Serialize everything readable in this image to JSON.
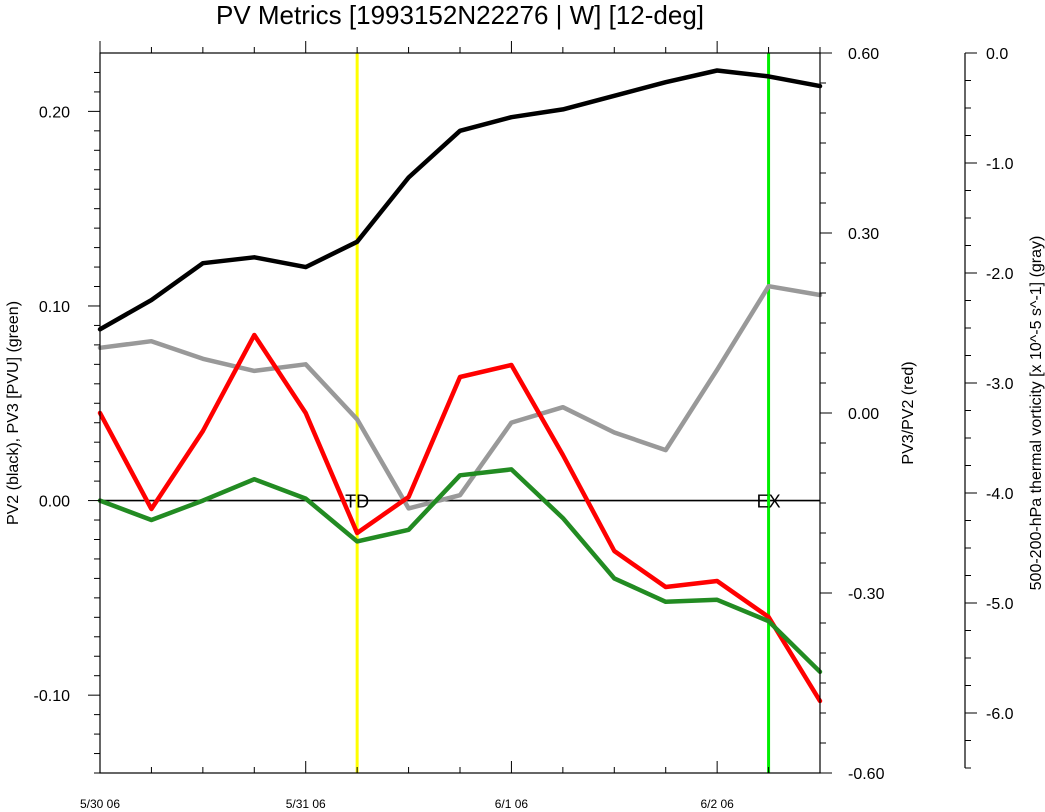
{
  "chart_data": {
    "type": "line",
    "title": "PV Metrics [1993152N22276 | W] [12-deg]",
    "ylabel_left": "PV2 (black), PV3 [PVU] (green)",
    "ylabel_right1": "PV3/PV2 (red)",
    "ylabel_right2": "500-200-hPa thermal vorticity [x 10^-5 s^-1] (gray)",
    "x_ticks": [
      {
        "x": 0,
        "label": "5/30 06"
      },
      {
        "x": 24,
        "label": "5/31 06"
      },
      {
        "x": 48,
        "label": "6/1 06"
      },
      {
        "x": 72,
        "label": "6/2 06"
      }
    ],
    "xlim": [
      0,
      84
    ],
    "ylim_left": [
      -0.14,
      0.23
    ],
    "ylim_right1": [
      -0.6,
      0.6
    ],
    "ylim_right2": [
      -6.5,
      0.0
    ],
    "left_ticks": [
      {
        "v": 0.2,
        "label": "0.20"
      },
      {
        "v": 0.1,
        "label": "0.10"
      },
      {
        "v": 0.0,
        "label": "0.00"
      },
      {
        "v": -0.1,
        "label": "-0.10"
      }
    ],
    "right1_ticks": [
      {
        "v": 0.6,
        "label": "0.60"
      },
      {
        "v": 0.3,
        "label": "0.30"
      },
      {
        "v": 0.0,
        "label": "0.00"
      },
      {
        "v": -0.3,
        "label": "-0.30"
      },
      {
        "v": -0.6,
        "label": "-0.60"
      }
    ],
    "right2_ticks": [
      {
        "v": 0.0,
        "label": "0.0"
      },
      {
        "v": -1.0,
        "label": "-1.0"
      },
      {
        "v": -2.0,
        "label": "-2.0"
      },
      {
        "v": -3.0,
        "label": "-3.0"
      },
      {
        "v": -4.0,
        "label": "-4.0"
      },
      {
        "v": -5.0,
        "label": "-5.0"
      },
      {
        "v": -6.0,
        "label": "-6.0"
      }
    ],
    "x": [
      0,
      6,
      12,
      18,
      24,
      30,
      36,
      42,
      48,
      54,
      60,
      66,
      72,
      78,
      84
    ],
    "series": [
      {
        "key": "pv2",
        "axis": "left",
        "color": "#000000",
        "values": [
          0.088,
          0.103,
          0.122,
          0.125,
          0.12,
          0.133,
          0.166,
          0.19,
          0.197,
          0.201,
          0.208,
          0.215,
          0.221,
          0.218,
          0.213
        ]
      },
      {
        "key": "vort",
        "axis": "right2",
        "color": "#999999",
        "values": [
          -2.68,
          -2.62,
          -2.78,
          -2.89,
          -2.83,
          -3.33,
          -4.14,
          -4.02,
          -3.36,
          -3.22,
          -3.45,
          -3.61,
          -2.88,
          -2.12,
          -2.2
        ]
      },
      {
        "key": "ratio",
        "axis": "right1",
        "color": "#ff0000",
        "values": [
          0.0,
          -0.16,
          -0.03,
          0.13,
          0.0,
          -0.2,
          -0.14,
          0.06,
          0.08,
          -0.07,
          -0.23,
          -0.29,
          -0.28,
          -0.34,
          -0.48
        ]
      },
      {
        "key": "pv3",
        "axis": "left",
        "color": "#228b22",
        "values": [
          0.0,
          -0.01,
          0.0,
          0.011,
          0.001,
          -0.021,
          -0.015,
          0.013,
          0.016,
          -0.009,
          -0.04,
          -0.052,
          -0.051,
          -0.062,
          -0.088
        ]
      }
    ],
    "vlines": [
      {
        "x": 30,
        "color": "#ffff00",
        "label": "TD"
      },
      {
        "x": 78,
        "color": "#00ee00",
        "label": "EX"
      }
    ],
    "zero_line_color": "#000000"
  }
}
